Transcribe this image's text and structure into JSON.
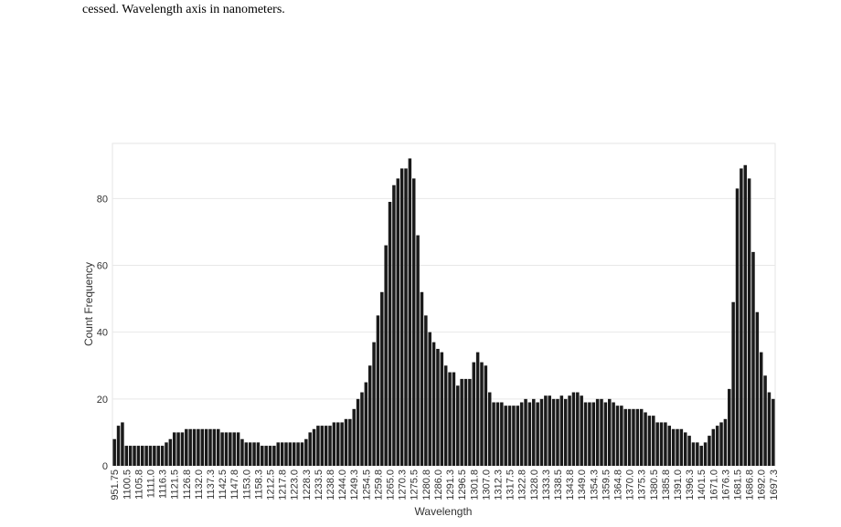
{
  "caption": "cessed. Wavelength axis in nanometers.",
  "chart_data": {
    "type": "bar",
    "xlabel": "Wavelength",
    "ylabel": "Count Frequency",
    "color": "#1a1a1a",
    "grid": true,
    "ylim": [
      0,
      96.5
    ],
    "yticks": [
      0,
      20,
      40,
      60,
      80
    ],
    "categories": [
      "951.75",
      null,
      null,
      "1100.5",
      null,
      null,
      "1105.8",
      null,
      null,
      "1111.0",
      null,
      null,
      "1116.3",
      null,
      null,
      "1121.5",
      null,
      null,
      "1126.8",
      null,
      null,
      "1132.0",
      null,
      null,
      "1137.3",
      null,
      null,
      "1142.5",
      null,
      null,
      "1147.8",
      null,
      null,
      "1153.0",
      null,
      null,
      "1158.3",
      null,
      null,
      "1212.5",
      null,
      null,
      "1217.8",
      null,
      null,
      "1223.0",
      null,
      null,
      "1228.3",
      null,
      null,
      "1233.5",
      null,
      null,
      "1238.8",
      null,
      null,
      "1244.0",
      null,
      null,
      "1249.3",
      null,
      null,
      "1254.5",
      null,
      null,
      "1259.8",
      null,
      null,
      "1265.0",
      null,
      null,
      "1270.3",
      null,
      null,
      "1275.5",
      null,
      null,
      "1280.8",
      null,
      null,
      "1286.0",
      null,
      null,
      "1291.3",
      null,
      null,
      "1296.5",
      null,
      null,
      "1301.8",
      null,
      null,
      "1307.0",
      null,
      null,
      "1312.3",
      null,
      null,
      "1317.5",
      null,
      null,
      "1322.8",
      null,
      null,
      "1328.0",
      null,
      null,
      "1333.3",
      null,
      null,
      "1338.5",
      null,
      null,
      "1343.8",
      null,
      null,
      "1349.0",
      null,
      null,
      "1354.3",
      null,
      null,
      "1359.5",
      null,
      null,
      "1364.8",
      null,
      null,
      "1370.0",
      null,
      null,
      "1375.3",
      null,
      null,
      "1380.5",
      null,
      null,
      "1385.8",
      null,
      null,
      "1391.0",
      null,
      null,
      "1396.3",
      null,
      null,
      "1401.5",
      null,
      null,
      "1671.0",
      null,
      null,
      "1676.3",
      null,
      null,
      "1681.5",
      null,
      null,
      "1686.8",
      null,
      null,
      "1692.0",
      null,
      null,
      "1697.3"
    ],
    "values": [
      8,
      12,
      13,
      6,
      6,
      6,
      6,
      6,
      6,
      6,
      6,
      6,
      6,
      7,
      8,
      10,
      10,
      10,
      11,
      11,
      11,
      11,
      11,
      11,
      11,
      11,
      11,
      10,
      10,
      10,
      10,
      10,
      8,
      7,
      7,
      7,
      7,
      6,
      6,
      6,
      6,
      7,
      7,
      7,
      7,
      7,
      7,
      7,
      8,
      10,
      11,
      12,
      12,
      12,
      12,
      13,
      13,
      13,
      14,
      14,
      17,
      20,
      22,
      25,
      30,
      37,
      45,
      52,
      66,
      79,
      84,
      86,
      89,
      89,
      92,
      86,
      69,
      52,
      45,
      40,
      37,
      35,
      34,
      30,
      28,
      28,
      24,
      26,
      26,
      26,
      31,
      34,
      31,
      30,
      22,
      19,
      19,
      19,
      18,
      18,
      18,
      18,
      19,
      20,
      19,
      20,
      19,
      20,
      21,
      21,
      20,
      20,
      21,
      20,
      21,
      22,
      22,
      21,
      19,
      19,
      19,
      20,
      20,
      19,
      20,
      19,
      18,
      18,
      17,
      17,
      17,
      17,
      17,
      16,
      15,
      15,
      13,
      13,
      13,
      12,
      11,
      11,
      11,
      10,
      9,
      7,
      7,
      6,
      7,
      9,
      11,
      12,
      13,
      14,
      23,
      49,
      83,
      89,
      90,
      86,
      64,
      46,
      34,
      27,
      22,
      20
    ]
  }
}
